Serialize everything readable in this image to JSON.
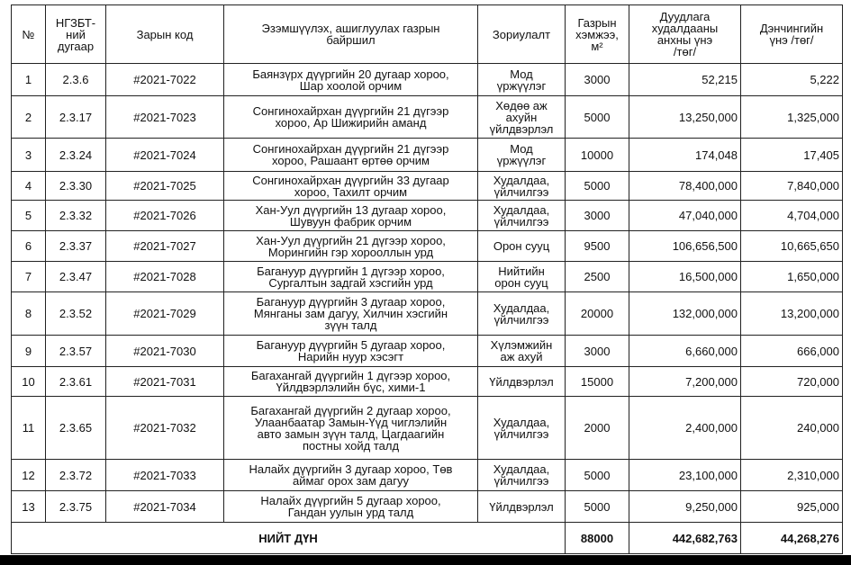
{
  "table": {
    "header": [
      "№",
      "НГЗБТ-\nний\nдугаар",
      "Зарын код",
      "Эзэмшүүлэх, ашиглуулах газрын\nбайршил",
      "Зориулалт",
      "Газрын\nхэмжээ,\nм²",
      "Дуудлага\nхудалдааны\nанхны үнэ\n/төг/",
      "Дэнчингийн\nүнэ /төг/"
    ],
    "rows": [
      [
        "1",
        "2.3.6",
        "#2021-7022",
        "Баянзүрх дүүргийн 20 дугаар хороо,\nШар хоолой орчим",
        "Мод\nүржүүлэг",
        "3000",
        "52,215",
        "5,222"
      ],
      [
        "2",
        "2.3.17",
        "#2021-7023",
        "Сонгинохайрхан дүүргийн 21 дүгээр\nхороо, Ар Шижирийн аманд",
        "Хөдөө аж\nахуйн\nүйлдвэрлэл",
        "5000",
        "13,250,000",
        "1,325,000"
      ],
      [
        "3",
        "2.3.24",
        "#2021-7024",
        "Сонгинохайрхан дүүргийн 21 дүгээр\nхороо, Рашаант өртөө орчим",
        "Мод\nүржүүлэг",
        "10000",
        "174,048",
        "17,405"
      ],
      [
        "4",
        "2.3.30",
        "#2021-7025",
        "Сонгинохайрхан дүүргийн 33 дугаар\nхороо, Тахилт орчим",
        "Худалдаа,\nүйлчилгээ",
        "5000",
        "78,400,000",
        "7,840,000"
      ],
      [
        "5",
        "2.3.32",
        "#2021-7026",
        "Хан-Уул дүүргийн 13 дугаар хороо,\nШувуун фабрик орчим",
        "Худалдаа,\nүйлчилгээ",
        "3000",
        "47,040,000",
        "4,704,000"
      ],
      [
        "6",
        "2.3.37",
        "#2021-7027",
        "Хан-Уул дүүргийн 21 дүгээр хороо,\nМорингийн гэр хорооллын урд",
        "Орон сууц",
        "9500",
        "106,656,500",
        "10,665,650"
      ],
      [
        "7",
        "2.3.47",
        "#2021-7028",
        "Багануур дүүргийн 1 дүгээр хороо,\nСургалтын задгай хэсгийн урд",
        "Нийтийн\nорон сууц",
        "2500",
        "16,500,000",
        "1,650,000"
      ],
      [
        "8",
        "2.3.52",
        "#2021-7029",
        "Багануур дүүргийн 3 дугаар хороо,\nМянганы зам дагуу, Хилчин хэсгийн\nзүүн талд",
        "Худалдаа,\nүйлчилгээ",
        "20000",
        "132,000,000",
        "13,200,000"
      ],
      [
        "9",
        "2.3.57",
        "#2021-7030",
        "Багануур дүүргийн 5 дугаар хороо,\nНарийн нуур хэсэгт",
        "Хүлэмжийн\nаж ахуй",
        "3000",
        "6,660,000",
        "666,000"
      ],
      [
        "10",
        "2.3.61",
        "#2021-7031",
        "Багахангай дүүргийн 1 дүгээр хороо,\nҮйлдвэрлэлийн бүс, хими-1",
        "Үйлдвэрлэл",
        "15000",
        "7,200,000",
        "720,000"
      ],
      [
        "11",
        "2.3.65",
        "#2021-7032",
        "Багахангай дүүргийн 2 дугаар хороо,\nУлаанбаатар Замын-Үүд чиглэлийн\nавто замын зүүн талд, Цагдаагийн\nпостны хойд талд",
        "Худалдаа,\nүйлчилгээ",
        "2000",
        "2,400,000",
        "240,000"
      ],
      [
        "12",
        "2.3.72",
        "#2021-7033",
        "Налайх дүүргийн 3 дугаар хороо, Төв\nаймаг орох зам дагуу",
        "Худалдаа,\nүйлчилгээ",
        "5000",
        "23,100,000",
        "2,310,000"
      ],
      [
        "13",
        "2.3.75",
        "#2021-7034",
        "Налайх дүүргийн 5 дугаар хороо,\nГандан уулын урд талд",
        "Үйлдвэрлэл",
        "5000",
        "9,250,000",
        "925,000"
      ]
    ],
    "total": [
      "НИЙТ ДҮН",
      "88000",
      "442,682,763",
      "44,268,276"
    ]
  }
}
